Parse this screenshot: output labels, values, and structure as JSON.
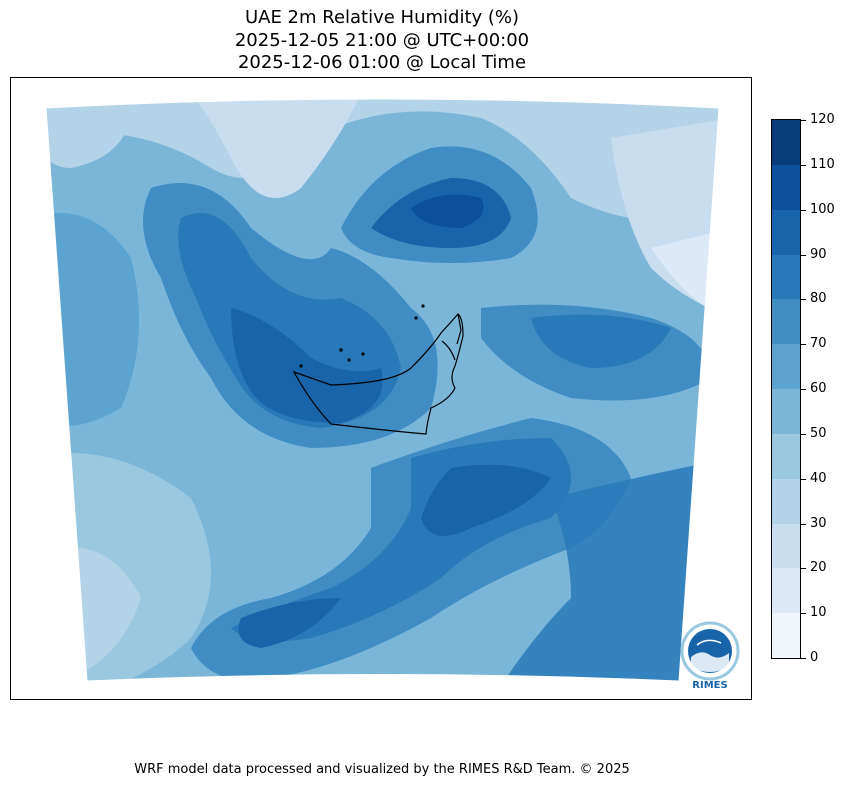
{
  "title": {
    "line1": "UAE 2m Relative Humidity (%)",
    "line2": "2025-12-05 21:00 @ UTC+00:00",
    "line3": "2025-12-06 01:00 @ Local Time"
  },
  "colorbar": {
    "levels": [
      0,
      10,
      20,
      30,
      40,
      50,
      60,
      70,
      80,
      90,
      100,
      110,
      120
    ],
    "labels": [
      "0",
      "10",
      "20",
      "30",
      "40",
      "50",
      "60",
      "70",
      "80",
      "90",
      "100",
      "110",
      "120"
    ],
    "colors": [
      "#f0f6fc",
      "#dde9f6",
      "#c8ddf0",
      "#b3d3e9",
      "#9ac8e1",
      "#7bb6d9",
      "#5ca3d0",
      "#3f8dc3",
      "#2879b9",
      "#1764ab",
      "#0a509a",
      "#083b7b"
    ]
  },
  "map": {
    "field": "2m relative humidity",
    "region": "UAE and surrounding",
    "country_outline": "United Arab Emirates"
  },
  "logo": {
    "text": "RIMES",
    "ring_text": "Regional Integrated Multi-Hazard Early Warning System"
  },
  "footer": {
    "text": "WRF model data processed and visualized by the RIMES R&D Team. © 2025"
  }
}
